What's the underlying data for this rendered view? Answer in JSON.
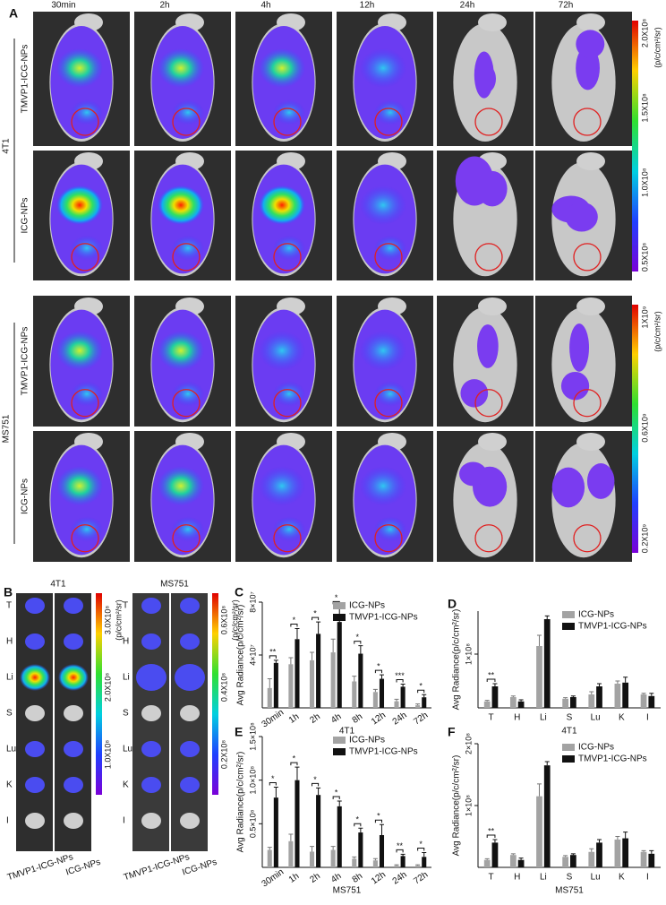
{
  "panel_a": {
    "label": "A",
    "times": [
      "30min",
      "2h",
      "4h",
      "12h",
      "24h",
      "72h"
    ],
    "groups": [
      {
        "name": "4T1",
        "rows": [
          "TMVP1-ICG-NPs",
          "ICG-NPs"
        ],
        "scale_ticks": [
          "2.0X10⁸",
          "1.5X10⁸",
          "1.0X10⁸",
          "0.5X10⁸"
        ],
        "scale_unit": "(p/c/cm²/sr)"
      },
      {
        "name": "MS751",
        "rows": [
          "TMVP1-ICG-NPs",
          "ICG-NPs"
        ],
        "scale_ticks": [
          "1X10⁹",
          "0.6X10⁹",
          "0.2X10⁹"
        ],
        "scale_unit": "(p/c/cm²/sr)"
      }
    ]
  },
  "panel_b": {
    "label": "B",
    "groups": [
      {
        "name": "4T1",
        "organs": [
          "T",
          "H",
          "Li",
          "S",
          "Lu",
          "K",
          "I"
        ],
        "columns": [
          "TMVP1-ICG-NPs",
          "ICG-NPs"
        ],
        "scale_ticks": [
          "3.0X10⁸",
          "2.0X10⁸",
          "1.0X10⁸"
        ],
        "scale_unit": "(p/c/cm²/sr)"
      },
      {
        "name": "MS751",
        "organs": [
          "T",
          "H",
          "Li",
          "S",
          "Lu",
          "K",
          "I"
        ],
        "columns": [
          "TMVP1-ICG-NPs",
          "ICG-NPs"
        ],
        "scale_ticks": [
          "0.6X10⁸",
          "0.4X10⁸",
          "0.2X10⁸"
        ],
        "scale_unit": "(p/c/cm²/sr)"
      }
    ]
  },
  "chart_data": [
    {
      "panel": "C",
      "type": "bar",
      "y_label": "Avg Radiance(p/c/cm²/sr)",
      "x_label": "4T1",
      "categories": [
        "30min",
        "1h",
        "2h",
        "4h",
        "8h",
        "12h",
        "24h",
        "72h"
      ],
      "series": [
        {
          "name": "ICG-NPs",
          "color": "#a3a3a3",
          "values": [
            15000000,
            33000000,
            36000000,
            42000000,
            20000000,
            12000000,
            5000000,
            2000000
          ],
          "errors": [
            7000000,
            5000000,
            6000000,
            10000000,
            4000000,
            2000000,
            1500000,
            1000000
          ]
        },
        {
          "name": "TMVP1-ICG-NPs",
          "color": "#111111",
          "values": [
            34000000,
            52000000,
            56000000,
            65000000,
            41000000,
            22000000,
            16000000,
            8000000
          ],
          "errors": [
            2000000,
            8000000,
            9000000,
            12000000,
            6000000,
            3000000,
            2000000,
            2000000
          ]
        }
      ],
      "significance": [
        "**",
        "*",
        "*",
        "*",
        "*",
        "*",
        "***",
        "*"
      ],
      "ylim": [
        0,
        80000000
      ],
      "yticks": [
        {
          "value": 40000000,
          "label": "4×10⁷"
        },
        {
          "value": 80000000,
          "label": "8×10⁷"
        }
      ],
      "legend": "upper right"
    },
    {
      "panel": "D",
      "type": "bar",
      "y_label": "Avg Radiance(p/c/cm²/sr)",
      "x_label": "4T1",
      "categories": [
        "T",
        "H",
        "Li",
        "S",
        "Lu",
        "K",
        "I"
      ],
      "series": [
        {
          "name": "ICG-NPs",
          "color": "#a3a3a3",
          "values": [
            12000000,
            20000000,
            115000000,
            17000000,
            25000000,
            45000000,
            25000000
          ],
          "errors": [
            2000000,
            2000000,
            20000000,
            2000000,
            5000000,
            5000000,
            2000000
          ]
        },
        {
          "name": "TMVP1-ICG-NPs",
          "color": "#111111",
          "values": [
            40000000,
            12000000,
            165000000,
            20000000,
            40000000,
            47000000,
            22000000
          ],
          "errors": [
            5000000,
            3000000,
            6000000,
            2000000,
            5000000,
            10000000,
            5000000
          ]
        }
      ],
      "significance": [
        "**",
        null,
        null,
        null,
        null,
        null,
        null
      ],
      "ylim": [
        0,
        180000000
      ],
      "yticks": [
        {
          "value": 100000000,
          "label": "1×10⁸"
        }
      ],
      "legend": "upper right"
    },
    {
      "panel": "E",
      "type": "bar",
      "y_label": "Avg Radiance(p/c/cm²/sr)",
      "x_label": "MS751",
      "categories": [
        "30min",
        "1h",
        "2h",
        "4h",
        "8h",
        "12h",
        "24h",
        "72h"
      ],
      "series": [
        {
          "name": "ICG-NPs",
          "color": "#a3a3a3",
          "values": [
            20000000,
            30000000,
            18000000,
            20000000,
            10000000,
            8000000,
            2000000,
            2000000
          ],
          "errors": [
            3000000,
            8000000,
            6000000,
            4000000,
            2000000,
            2000000,
            1000000,
            1000000
          ]
        },
        {
          "name": "TMVP1-ICG-NPs",
          "color": "#111111",
          "values": [
            80000000,
            100000000,
            83000000,
            70000000,
            40000000,
            37000000,
            13000000,
            12000000
          ],
          "errors": [
            12000000,
            15000000,
            8000000,
            6000000,
            5000000,
            12000000,
            2000000,
            5000000
          ]
        }
      ],
      "significance": [
        "*",
        "*",
        "*",
        "*",
        "*",
        "*",
        "**",
        "*"
      ],
      "ylim": [
        0,
        150000000
      ],
      "yticks": [
        {
          "value": 50000000,
          "label": "0.5×10⁸"
        },
        {
          "value": 100000000,
          "label": "1.0×10⁸"
        },
        {
          "value": 150000000,
          "label": "1.5×10⁸"
        }
      ],
      "legend": "upper right"
    },
    {
      "panel": "F",
      "type": "bar",
      "y_label": "Avg Radiance(p/c/cm²/sr)",
      "x_label": "MS751",
      "categories": [
        "T",
        "H",
        "Li",
        "S",
        "Lu",
        "K",
        "I"
      ],
      "series": [
        {
          "name": "ICG-NPs",
          "color": "#a3a3a3",
          "values": [
            12000000,
            20000000,
            115000000,
            17000000,
            25000000,
            45000000,
            25000000
          ],
          "errors": [
            2000000,
            2000000,
            20000000,
            2000000,
            5000000,
            5000000,
            2000000
          ]
        },
        {
          "name": "TMVP1-ICG-NPs",
          "color": "#111111",
          "values": [
            40000000,
            12000000,
            165000000,
            20000000,
            40000000,
            47000000,
            22000000
          ],
          "errors": [
            5000000,
            3000000,
            6000000,
            2000000,
            5000000,
            10000000,
            5000000
          ]
        }
      ],
      "significance": [
        "**",
        null,
        null,
        null,
        null,
        null,
        null
      ],
      "ylim": [
        0,
        200000000
      ],
      "yticks": [
        {
          "value": 100000000,
          "label": "1×10⁸"
        },
        {
          "value": 200000000,
          "label": "2×10⁸"
        }
      ],
      "legend": "upper right"
    }
  ]
}
